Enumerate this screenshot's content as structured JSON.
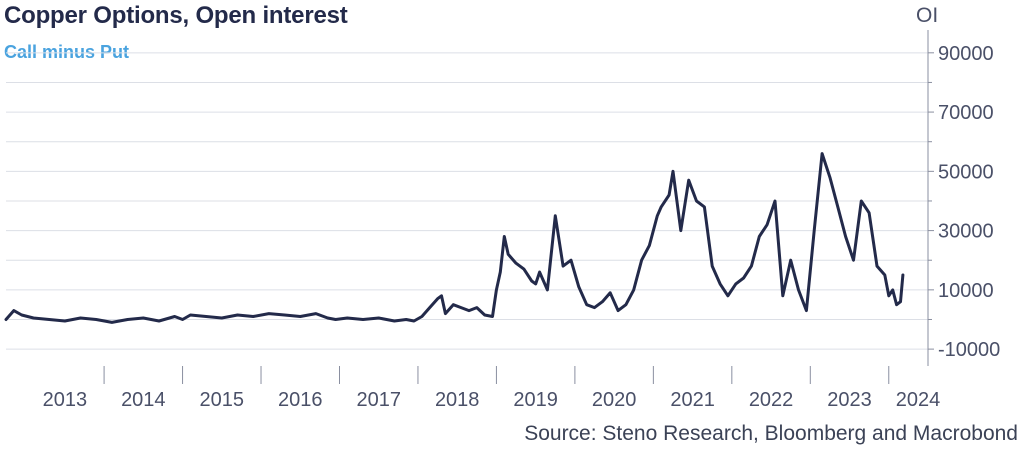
{
  "chart_data": {
    "type": "line",
    "title": "Copper Options, Open interest",
    "subtitle": "Call minus Put",
    "ylabel": "OI",
    "source": "Source: Steno Research, Bloomberg and Macrobond",
    "ylim": [
      -13000,
      95000
    ],
    "xlim": [
      2012.75,
      2024.5
    ],
    "grid": true,
    "y_axis_side": "right",
    "y_ticks": [
      90000,
      70000,
      50000,
      30000,
      10000,
      -10000
    ],
    "y_tick_labels": [
      "90000",
      "70000",
      "50000",
      "30000",
      "10000",
      "-10000"
    ],
    "x_tick_labels": [
      "2013",
      "2014",
      "2015",
      "2016",
      "2017",
      "2018",
      "2019",
      "2020",
      "2021",
      "2022",
      "2023",
      "2024"
    ],
    "colors": {
      "line": "#232a4a",
      "grid": "#dcdfe6",
      "title": "#232a4a",
      "subtitle": "#4aa3df"
    },
    "series": [
      {
        "x": [
          2012.75,
          2012.85,
          2012.95,
          2013.1,
          2013.3,
          2013.5,
          2013.7,
          2013.9,
          2014.1,
          2014.3,
          2014.5,
          2014.7,
          2014.9,
          2015.0,
          2015.1,
          2015.3,
          2015.5,
          2015.7,
          2015.9,
          2016.1,
          2016.3,
          2016.5,
          2016.7,
          2016.85,
          2016.95,
          2017.1,
          2017.3,
          2017.5,
          2017.7,
          2017.85,
          2017.95,
          2018.05,
          2018.15,
          2018.25,
          2018.3,
          2018.35,
          2018.45,
          2018.55,
          2018.65,
          2018.75,
          2018.85,
          2018.95,
          2019.0,
          2019.05,
          2019.1,
          2019.15,
          2019.25,
          2019.35,
          2019.45,
          2019.5,
          2019.55,
          2019.65,
          2019.75,
          2019.85,
          2019.95,
          2020.05,
          2020.15,
          2020.25,
          2020.35,
          2020.45,
          2020.55,
          2020.65,
          2020.75,
          2020.85,
          2020.95,
          2021.05,
          2021.1,
          2021.2,
          2021.25,
          2021.35,
          2021.45,
          2021.55,
          2021.65,
          2021.75,
          2021.85,
          2021.95,
          2022.05,
          2022.15,
          2022.25,
          2022.35,
          2022.45,
          2022.55,
          2022.65,
          2022.75,
          2022.85,
          2022.95,
          2023.05,
          2023.15,
          2023.25,
          2023.35,
          2023.45,
          2023.55,
          2023.65,
          2023.75,
          2023.85,
          2023.95,
          2024.0,
          2024.05,
          2024.1,
          2024.15,
          2024.18
        ],
        "values": [
          0,
          3000,
          1500,
          500,
          0,
          -500,
          500,
          0,
          -1000,
          0,
          500,
          -500,
          1000,
          0,
          1500,
          1000,
          500,
          1500,
          1000,
          2000,
          1500,
          1000,
          2000,
          500,
          0,
          500,
          0,
          500,
          -500,
          0,
          -500,
          1000,
          4000,
          7000,
          8000,
          2000,
          5000,
          4000,
          3000,
          4000,
          1500,
          1000,
          10000,
          16000,
          28000,
          22000,
          19000,
          17000,
          13000,
          12000,
          16000,
          10000,
          35000,
          18000,
          20000,
          11000,
          5000,
          4000,
          6000,
          9000,
          3000,
          5000,
          10000,
          20000,
          25000,
          35000,
          38000,
          42000,
          50000,
          30000,
          47000,
          40000,
          38000,
          18000,
          12000,
          8000,
          12000,
          14000,
          18000,
          28000,
          32000,
          40000,
          8000,
          20000,
          10000,
          3000,
          30000,
          56000,
          48000,
          38000,
          28000,
          20000,
          40000,
          36000,
          18000,
          15000,
          8000,
          10000,
          5000,
          6000,
          15000
        ]
      }
    ]
  }
}
